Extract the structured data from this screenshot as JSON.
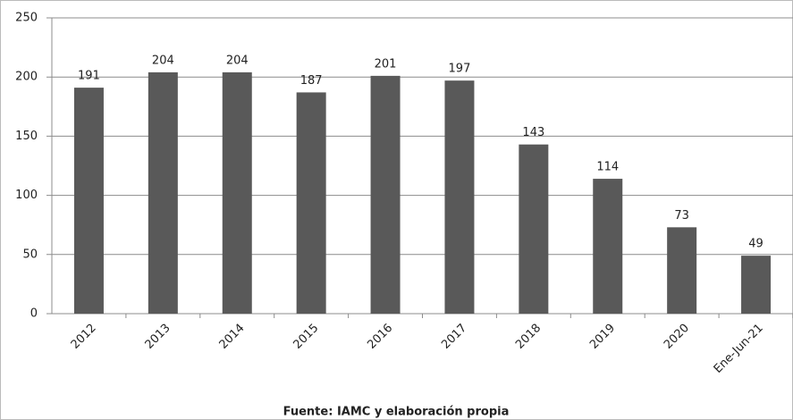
{
  "chart_data": {
    "type": "bar",
    "categories": [
      "2012",
      "2013",
      "2014",
      "2015",
      "2016",
      "2017",
      "2018",
      "2019",
      "2020",
      "Ene-Jun-21"
    ],
    "values": [
      191,
      204,
      204,
      187,
      201,
      197,
      143,
      114,
      73,
      49
    ],
    "color": "#595959",
    "ylim": [
      0,
      250
    ],
    "yticks": [
      0,
      50,
      100,
      150,
      200,
      250
    ],
    "grid": true,
    "caption": "Fuente: IAMC y elaboración propia"
  }
}
